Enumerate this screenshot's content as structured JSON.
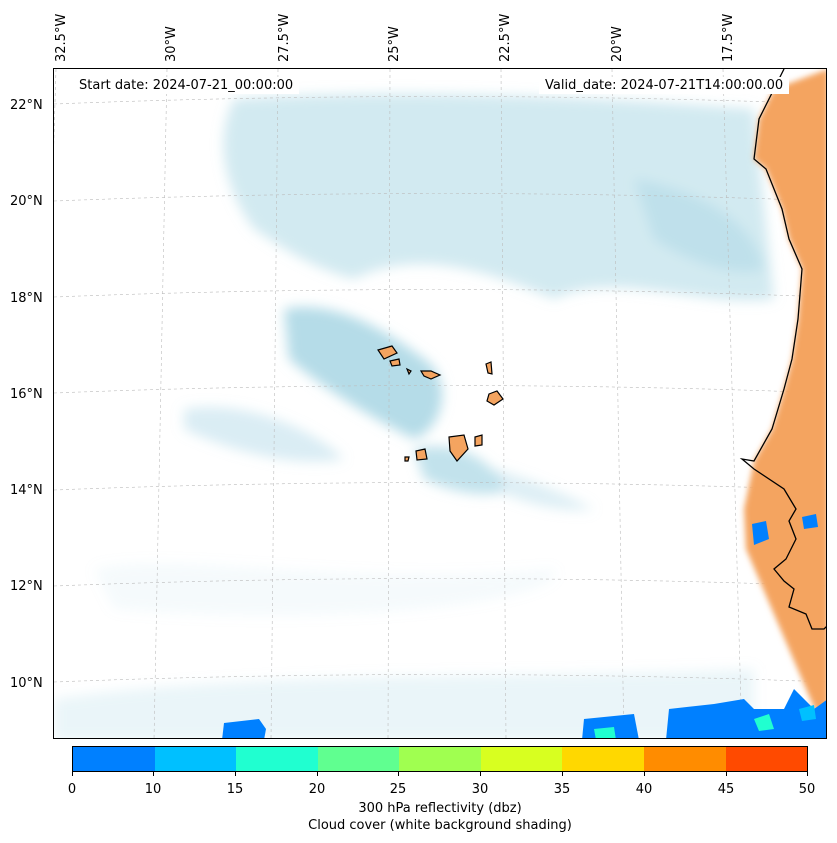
{
  "info": {
    "start_date": "Start date: 2024-07-21_00:00:00",
    "valid_date": "Valid_date: 2024-07-21T14:00:00.00"
  },
  "longitude_labels": [
    "32.5°W",
    "30°W",
    "27.5°W",
    "25°W",
    "22.5°W",
    "20°W",
    "17.5°W"
  ],
  "latitude_labels": [
    "22°N",
    "20°N",
    "18°N",
    "16°N",
    "14°N",
    "12°N",
    "10°N"
  ],
  "map": {
    "land_color": "#f4a460",
    "cloud_color": "#add8e6",
    "coastline_color": "#000000",
    "grid": "dashed light gray"
  },
  "colorbar": {
    "ticks": [
      "0",
      "10",
      "15",
      "20",
      "25",
      "30",
      "35",
      "40",
      "45",
      "50"
    ],
    "colors": [
      "#0080ff",
      "#00c0ff",
      "#20ffd0",
      "#60ff90",
      "#a0ff50",
      "#d8ff20",
      "#ffd800",
      "#ff8c00",
      "#ff4a00"
    ],
    "label_line1": "300 hPa reflectivity (dbz)",
    "label_line2": "Cloud cover (white background shading)"
  }
}
